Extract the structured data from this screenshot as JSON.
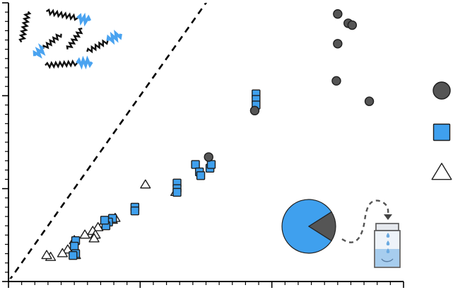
{
  "chart_data": {
    "type": "scatter",
    "title": "",
    "xlabel": "",
    "ylabel": "",
    "xlim": [
      0,
      30
    ],
    "ylim": [
      0,
      15
    ],
    "grid": false,
    "legend_placement": "right",
    "tick_labels_shown": false,
    "x_major_ticks": [
      0,
      10,
      20,
      30
    ],
    "y_major_ticks": [
      0,
      5,
      10,
      15
    ],
    "reference_line": {
      "style": "dashed",
      "color": "#000000",
      "slope": 1,
      "intercept": 0
    },
    "series": [
      {
        "marker": "circle",
        "color": "#555555",
        "points": [
          {
            "x": 25.0,
            "y": 14.4
          },
          {
            "x": 25.8,
            "y": 13.9
          },
          {
            "x": 26.1,
            "y": 13.8
          },
          {
            "x": 25.0,
            "y": 12.8
          },
          {
            "x": 24.9,
            "y": 10.8
          },
          {
            "x": 27.4,
            "y": 9.7
          },
          {
            "x": 18.7,
            "y": 9.2
          },
          {
            "x": 15.2,
            "y": 6.7
          }
        ]
      },
      {
        "marker": "square",
        "color": "#3fa0ee",
        "points": [
          {
            "x": 18.8,
            "y": 10.1
          },
          {
            "x": 18.8,
            "y": 9.8
          },
          {
            "x": 18.8,
            "y": 9.5
          },
          {
            "x": 14.2,
            "y": 6.3
          },
          {
            "x": 14.5,
            "y": 5.9
          },
          {
            "x": 14.6,
            "y": 5.7
          },
          {
            "x": 15.3,
            "y": 6.1
          },
          {
            "x": 15.4,
            "y": 6.3
          },
          {
            "x": 12.8,
            "y": 5.3
          },
          {
            "x": 12.8,
            "y": 5.0
          },
          {
            "x": 12.8,
            "y": 4.8
          },
          {
            "x": 9.6,
            "y": 4.0
          },
          {
            "x": 9.6,
            "y": 3.8
          },
          {
            "x": 7.9,
            "y": 3.4
          },
          {
            "x": 7.6,
            "y": 3.2
          },
          {
            "x": 7.4,
            "y": 3.0
          },
          {
            "x": 7.3,
            "y": 3.3
          },
          {
            "x": 5.1,
            "y": 2.2
          },
          {
            "x": 5.0,
            "y": 1.9
          },
          {
            "x": 5.1,
            "y": 1.5
          },
          {
            "x": 4.9,
            "y": 1.4
          }
        ]
      },
      {
        "marker": "triangle",
        "color": "#ffffff",
        "points": [
          {
            "x": 10.4,
            "y": 5.2
          },
          {
            "x": 12.7,
            "y": 4.8
          },
          {
            "x": 8.1,
            "y": 3.4
          },
          {
            "x": 7.9,
            "y": 3.3
          },
          {
            "x": 7.2,
            "y": 3.1
          },
          {
            "x": 6.8,
            "y": 2.9
          },
          {
            "x": 6.4,
            "y": 2.7
          },
          {
            "x": 6.6,
            "y": 2.5
          },
          {
            "x": 5.8,
            "y": 2.5
          },
          {
            "x": 6.5,
            "y": 2.3
          },
          {
            "x": 5.0,
            "y": 2.2
          },
          {
            "x": 4.5,
            "y": 1.7
          },
          {
            "x": 4.1,
            "y": 1.5
          },
          {
            "x": 5.1,
            "y": 1.4
          },
          {
            "x": 3.2,
            "y": 1.3
          },
          {
            "x": 2.9,
            "y": 1.4
          }
        ]
      }
    ],
    "inset_pie": {
      "slices": [
        0.82,
        0.18
      ],
      "colors": [
        "#3fa0ee",
        "#555555"
      ]
    }
  }
}
